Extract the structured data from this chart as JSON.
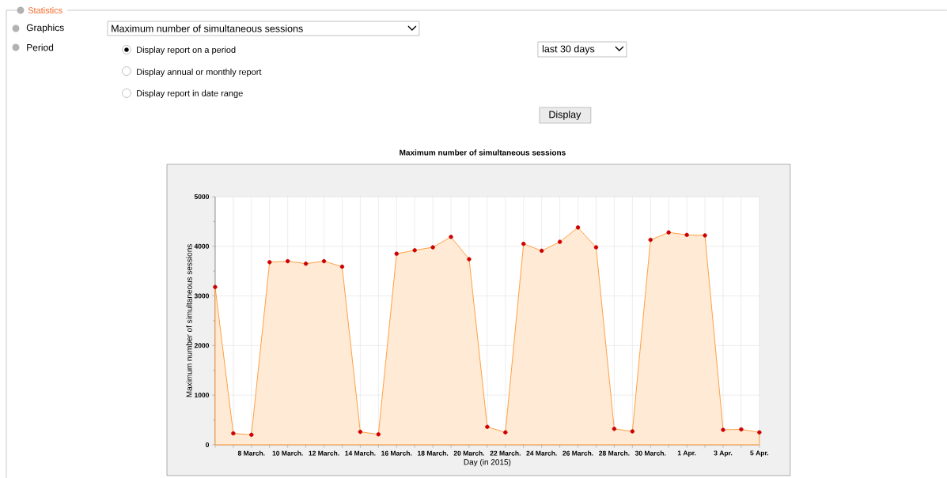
{
  "chart_data": {
    "type": "area",
    "title": "Maximum number of simultaneous sessions",
    "xlabel": "Day (in 2015)",
    "ylabel": "Maximum number of simultaneous sessions",
    "categories": [
      null,
      null,
      "8 March.",
      null,
      "10 March.",
      null,
      "12 March.",
      null,
      "14 March.",
      null,
      "16 March.",
      null,
      "18 March.",
      null,
      "20 March.",
      null,
      "22 March.",
      null,
      "24 March.",
      null,
      "26 March.",
      null,
      "28 March.",
      null,
      "30 March.",
      null,
      "1 Apr.",
      null,
      "3 Apr.",
      null,
      "5 Apr."
    ],
    "values": [
      3180,
      230,
      200,
      3680,
      3700,
      3650,
      3700,
      3590,
      260,
      210,
      3850,
      3920,
      3980,
      4190,
      3740,
      360,
      250,
      4050,
      3910,
      4090,
      4380,
      3980,
      320,
      270,
      4130,
      4280,
      4230,
      4220,
      300,
      310,
      250
    ],
    "color": "#ff8c1a",
    "marker": "circle",
    "grid": true,
    "ylim": [
      0,
      5000
    ],
    "yticks": [
      0,
      1000,
      2000,
      3000,
      4000,
      5000
    ],
    "annotations": [
      "Statistics",
      "Graphics",
      "Maximum number of simultaneous sessions",
      "Period",
      "Display report on a period",
      "Display annual or monthly report",
      "Display report in date range",
      "last 30 days",
      "Display"
    ]
  }
}
